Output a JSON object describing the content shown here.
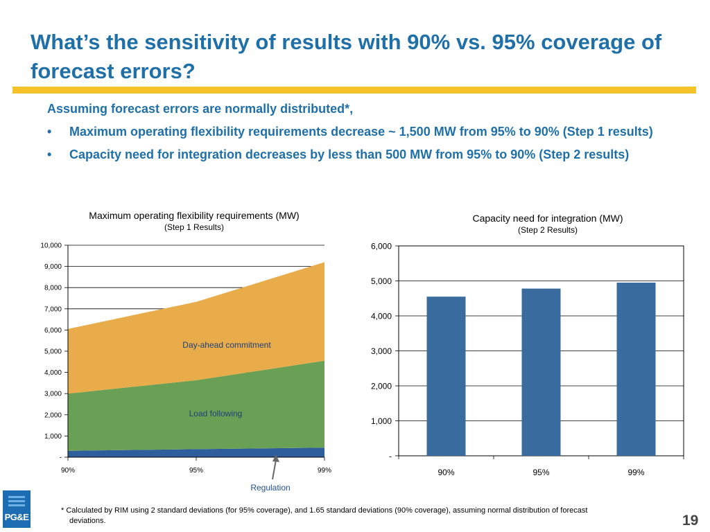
{
  "slide": {
    "title": "What’s the sensitivity of results with 90% vs. 95% coverage of forecast errors?",
    "intro": "Assuming forecast errors are normally distributed*,",
    "bullets": [
      "Maximum operating flexibility requirements decrease ~ 1,500 MW from 95% to 90% (Step 1 results)",
      "Capacity need for integration decreases by less than 500 MW from 95% to 90% (Step 2 results)"
    ],
    "bullet_symbol": "•",
    "footnote_line1": "* Calculated by RIM using 2 standard deviations (for 95% coverage), and 1.65 standard deviations (90% coverage), assuming normal distribution of forecast",
    "footnote_line2": "deviations.",
    "page_number": "19",
    "logo_text": "PG&E",
    "colors": {
      "title_blue": "#1f6fa8",
      "rule_yellow": "#f5c22a",
      "regulation": "#2e5f9c",
      "load_following": "#6aa055",
      "day_ahead": "#e9ac4a",
      "bar": "#3a6b9e"
    }
  },
  "chart_data": [
    {
      "type": "area",
      "stacked": true,
      "title": "Maximum operating flexibility requirements (MW)",
      "subtitle": "(Step 1 Results)",
      "categories": [
        "90%",
        "95%",
        "99%"
      ],
      "ylim": [
        0,
        10000
      ],
      "yticks": [
        0,
        1000,
        2000,
        3000,
        4000,
        5000,
        6000,
        7000,
        8000,
        9000,
        10000
      ],
      "ytick_labels": [
        "-",
        "1,000",
        "2,000",
        "3,000",
        "4,000",
        "5,000",
        "6,000",
        "7,000",
        "8,000",
        "9,000",
        "10,000"
      ],
      "grid": true,
      "series": [
        {
          "name": "Regulation",
          "values": [
            300,
            380,
            450
          ],
          "color": "#2e5f9c"
        },
        {
          "name": "Load following",
          "values": [
            2700,
            3250,
            4100
          ],
          "color": "#6aa055"
        },
        {
          "name": "Day-ahead commitment",
          "values": [
            3050,
            3700,
            4650
          ],
          "color": "#e9ac4a"
        }
      ],
      "annotations": {
        "day_ahead": "Day-ahead commitment",
        "load_following": "Load following",
        "regulation": "Regulation"
      }
    },
    {
      "type": "bar",
      "title": "Capacity need for integration (MW)",
      "subtitle": "(Step 2 Results)",
      "categories": [
        "90%",
        "95%",
        "99%"
      ],
      "values": [
        4550,
        4780,
        4950
      ],
      "ylim": [
        0,
        6000
      ],
      "yticks": [
        0,
        1000,
        2000,
        3000,
        4000,
        5000,
        6000
      ],
      "ytick_labels": [
        "-",
        "1,000",
        "2,000",
        "3,000",
        "4,000",
        "5,000",
        "6,000"
      ],
      "grid": true,
      "color": "#3a6b9e"
    }
  ]
}
